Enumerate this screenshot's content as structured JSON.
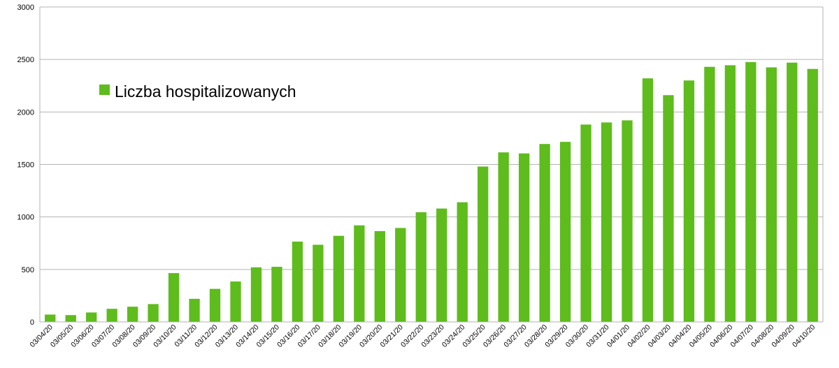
{
  "chart_data": {
    "type": "bar",
    "categories": [
      "03/04/20",
      "03/05/20",
      "03/06/20",
      "03/07/20",
      "03/08/20",
      "03/09/20",
      "03/10/20",
      "03/11/20",
      "03/12/20",
      "03/13/20",
      "03/14/20",
      "03/15/20",
      "03/16/20",
      "03/17/20",
      "03/18/20",
      "03/19/20",
      "03/20/20",
      "03/21/20",
      "03/22/20",
      "03/23/20",
      "03/24/20",
      "03/25/20",
      "03/26/20",
      "03/27/20",
      "03/28/20",
      "03/29/20",
      "03/30/20",
      "03/31/20",
      "04/01/20",
      "04/02/20",
      "04/03/20",
      "04/04/20",
      "04/05/20",
      "04/06/20",
      "04/07/20",
      "04/08/20",
      "04/09/20",
      "04/10/20"
    ],
    "series": [
      {
        "name": "Liczba hospitalizowanych",
        "color": "#5ebc1c",
        "values": [
          70,
          65,
          90,
          125,
          145,
          170,
          465,
          220,
          315,
          385,
          520,
          525,
          765,
          735,
          820,
          920,
          865,
          895,
          1045,
          1080,
          1140,
          1480,
          1615,
          1605,
          1695,
          1715,
          1880,
          1900,
          1920,
          2320,
          2160,
          2300,
          2430,
          2445,
          2475,
          2425,
          2470,
          2410
        ]
      }
    ],
    "ylim": [
      0,
      3000
    ],
    "yticks": [
      0,
      500,
      1000,
      1500,
      2000,
      2500,
      3000
    ],
    "grid": true,
    "legend_position": "top-left",
    "title": "",
    "xlabel": "",
    "ylabel": ""
  }
}
